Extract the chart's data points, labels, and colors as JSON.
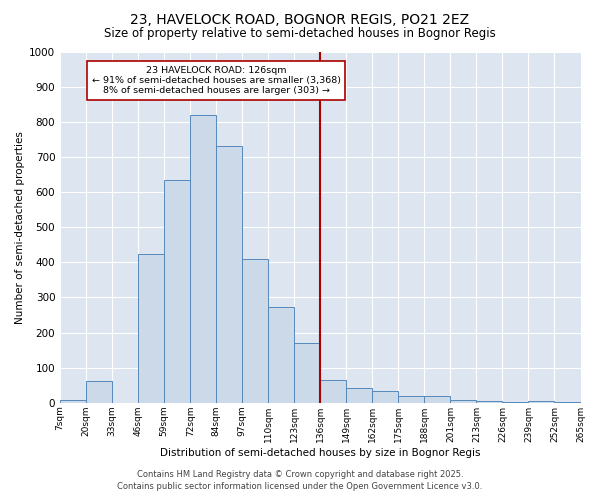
{
  "title": "23, HAVELOCK ROAD, BOGNOR REGIS, PO21 2EZ",
  "subtitle": "Size of property relative to semi-detached houses in Bognor Regis",
  "xlabel": "Distribution of semi-detached houses by size in Bognor Regis",
  "ylabel": "Number of semi-detached properties",
  "bar_labels": [
    "7sqm",
    "20sqm",
    "33sqm",
    "46sqm",
    "59sqm",
    "72sqm",
    "84sqm",
    "97sqm",
    "110sqm",
    "123sqm",
    "136sqm",
    "149sqm",
    "162sqm",
    "175sqm",
    "188sqm",
    "201sqm",
    "213sqm",
    "226sqm",
    "239sqm",
    "252sqm",
    "265sqm"
  ],
  "bar_values": [
    7,
    63,
    0,
    423,
    635,
    820,
    730,
    408,
    272,
    170,
    65,
    42,
    33,
    18,
    18,
    7,
    5,
    2,
    5,
    2
  ],
  "bar_color": "#ccd9e8",
  "bar_edge_color": "#5588bb",
  "vline_color": "#aa0000",
  "annotation_title": "23 HAVELOCK ROAD: 126sqm",
  "annotation_line1": "← 91% of semi-detached houses are smaller (3,368)",
  "annotation_line2": "8% of semi-detached houses are larger (303) →",
  "annotation_box_color": "#aa0000",
  "ylim": [
    0,
    1000
  ],
  "yticks": [
    0,
    100,
    200,
    300,
    400,
    500,
    600,
    700,
    800,
    900,
    1000
  ],
  "bg_color": "#dde6f0",
  "footer_line1": "Contains HM Land Registry data © Crown copyright and database right 2025.",
  "footer_line2": "Contains public sector information licensed under the Open Government Licence v3.0.",
  "title_fontsize": 10,
  "subtitle_fontsize": 8.5,
  "footer_fontsize": 6.0
}
